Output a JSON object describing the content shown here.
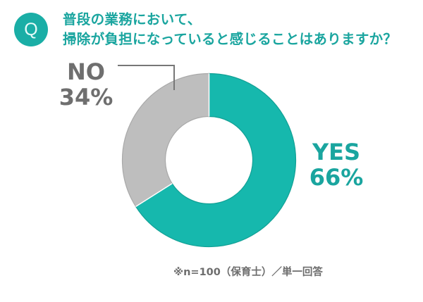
{
  "question": {
    "badge": "Q",
    "lines": [
      "普段の業務において、",
      "掃除が負担になっていると感じることはありますか？"
    ]
  },
  "colors": {
    "yes": "#16b8ad",
    "no": "#bebebe",
    "accent_text": "#1aa59f",
    "gray_text": "#6f6f6f"
  },
  "labels": {
    "no": {
      "name": "NO",
      "pct": "34%"
    },
    "yes": {
      "name": "YES",
      "pct": "66%"
    }
  },
  "footnote": "※n=100（保育士）／単一回答",
  "chart_data": {
    "type": "pie",
    "variant": "donut",
    "title": "普段の業務において、掃除が負担になっていると感じることはありますか？",
    "categories": [
      "YES",
      "NO"
    ],
    "values": [
      66,
      34
    ],
    "unit": "%",
    "colors": [
      "#16b8ad",
      "#bebebe"
    ],
    "start_angle": "12 o'clock",
    "direction": "YES clockwise from top, NO counter-clockwise from top",
    "annotations": [
      "※n=100（保育士）／単一回答"
    ],
    "legend": "none (direct labels)"
  }
}
